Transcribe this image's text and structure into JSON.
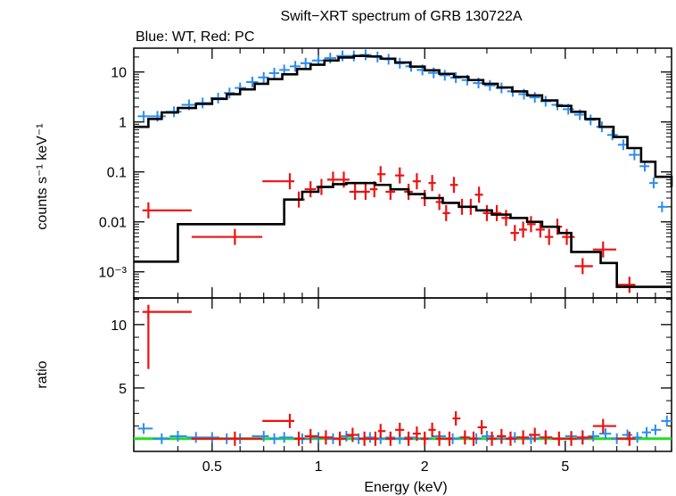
{
  "chart_data": {
    "type": "scatter",
    "title": "Swift−XRT spectrum of GRB 130722A",
    "subtitle": "Blue: WT, Red: PC",
    "xlabel": "Energy (keV)",
    "xscale": "log",
    "xlim": [
      0.3,
      10
    ],
    "x_ticks": [
      "0.5",
      "1",
      "2",
      "5"
    ],
    "x_tick_values": [
      0.5,
      1,
      2,
      5
    ],
    "colors": {
      "wt": "#2a8cf0",
      "pc": "#ee1111",
      "model": "#000000",
      "unity": "#22dd22"
    },
    "panels": [
      {
        "name": "spectrum",
        "ylabel": "counts s⁻¹ keV⁻¹",
        "yscale": "log",
        "ylim": [
          0.0003,
          30
        ],
        "y_ticks": [
          "10",
          "1",
          "0.1",
          "0.01",
          "10⁻³"
        ],
        "y_tick_values": [
          10,
          1,
          0.1,
          0.01,
          0.001
        ],
        "series": [
          {
            "key": "wt",
            "points": [
              [
                0.32,
                1.3
              ],
              [
                0.35,
                1.3
              ],
              [
                0.39,
                1.6
              ],
              [
                0.43,
                2.2
              ],
              [
                0.47,
                2.4
              ],
              [
                0.52,
                3.0
              ],
              [
                0.56,
                3.8
              ],
              [
                0.6,
                4.8
              ],
              [
                0.65,
                6.3
              ],
              [
                0.7,
                7.8
              ],
              [
                0.75,
                9.5
              ],
              [
                0.8,
                11
              ],
              [
                0.86,
                13
              ],
              [
                0.92,
                15
              ],
              [
                1.0,
                17
              ],
              [
                1.08,
                19
              ],
              [
                1.17,
                21
              ],
              [
                1.26,
                21
              ],
              [
                1.36,
                22
              ],
              [
                1.47,
                20
              ],
              [
                1.58,
                18
              ],
              [
                1.7,
                15
              ],
              [
                1.83,
                13
              ],
              [
                1.97,
                11
              ],
              [
                2.12,
                9.6
              ],
              [
                2.28,
                8.6
              ],
              [
                2.45,
                7.7
              ],
              [
                2.64,
                6.9
              ],
              [
                2.84,
                6.0
              ],
              [
                3.06,
                5.4
              ],
              [
                3.3,
                4.8
              ],
              [
                3.55,
                4.1
              ],
              [
                3.82,
                3.6
              ],
              [
                4.1,
                3.1
              ],
              [
                4.4,
                2.6
              ],
              [
                4.75,
                2.2
              ],
              [
                5.1,
                1.8
              ],
              [
                5.5,
                1.4
              ],
              [
                5.9,
                1.1
              ],
              [
                6.35,
                0.8
              ],
              [
                6.8,
                0.55
              ],
              [
                7.3,
                0.35
              ],
              [
                7.85,
                0.22
              ],
              [
                8.4,
                0.13
              ],
              [
                8.9,
                0.06
              ],
              [
                9.4,
                0.02
              ]
            ]
          },
          {
            "key": "pc",
            "points": [
              [
                0.33,
                0.017
              ],
              [
                0.58,
                0.005
              ],
              [
                0.83,
                0.065
              ],
              [
                0.88,
                0.028
              ],
              [
                0.95,
                0.045
              ],
              [
                1.02,
                0.05
              ],
              [
                1.1,
                0.07
              ],
              [
                1.18,
                0.07
              ],
              [
                1.27,
                0.04
              ],
              [
                1.36,
                0.04
              ],
              [
                1.44,
                0.045
              ],
              [
                1.5,
                0.09
              ],
              [
                1.6,
                0.04
              ],
              [
                1.7,
                0.085
              ],
              [
                1.8,
                0.04
              ],
              [
                1.9,
                0.065
              ],
              [
                2.0,
                0.03
              ],
              [
                2.1,
                0.06
              ],
              [
                2.2,
                0.025
              ],
              [
                2.3,
                0.015
              ],
              [
                2.42,
                0.055
              ],
              [
                2.55,
                0.02
              ],
              [
                2.7,
                0.02
              ],
              [
                2.85,
                0.035
              ],
              [
                3.0,
                0.015
              ],
              [
                3.2,
                0.015
              ],
              [
                3.4,
                0.012
              ],
              [
                3.6,
                0.006
              ],
              [
                3.8,
                0.007
              ],
              [
                4.0,
                0.009
              ],
              [
                4.25,
                0.007
              ],
              [
                4.5,
                0.005
              ],
              [
                4.75,
                0.008
              ],
              [
                5.05,
                0.005
              ],
              [
                5.6,
                0.0013
              ],
              [
                6.4,
                0.0028
              ],
              [
                7.6,
                0.00055
              ]
            ]
          },
          {
            "key": "model",
            "step": true,
            "points": [
              [
                0.3,
                0.8
              ],
              [
                0.33,
                1.15
              ],
              [
                0.36,
                1.55
              ],
              [
                0.4,
                1.9
              ],
              [
                0.45,
                2.3
              ],
              [
                0.5,
                2.9
              ],
              [
                0.55,
                3.6
              ],
              [
                0.6,
                4.5
              ],
              [
                0.66,
                5.8
              ],
              [
                0.72,
                7.2
              ],
              [
                0.79,
                9.0
              ],
              [
                0.87,
                11.5
              ],
              [
                0.95,
                14
              ],
              [
                1.04,
                17
              ],
              [
                1.14,
                19.5
              ],
              [
                1.26,
                21
              ],
              [
                1.38,
                20.5
              ],
              [
                1.5,
                18.5
              ],
              [
                1.65,
                15.5
              ],
              [
                1.82,
                12.8
              ],
              [
                2.0,
                10.8
              ],
              [
                2.2,
                9.2
              ],
              [
                2.42,
                8.0
              ],
              [
                2.66,
                6.9
              ],
              [
                2.93,
                5.8
              ],
              [
                3.22,
                4.9
              ],
              [
                3.54,
                4.1
              ],
              [
                3.9,
                3.4
              ],
              [
                4.3,
                2.7
              ],
              [
                4.75,
                2.1
              ],
              [
                5.2,
                1.6
              ],
              [
                5.7,
                1.15
              ],
              [
                6.25,
                0.8
              ],
              [
                6.85,
                0.5
              ],
              [
                7.5,
                0.3
              ],
              [
                8.2,
                0.16
              ],
              [
                9.0,
                0.08
              ],
              [
                10.0,
                0.05
              ]
            ]
          },
          {
            "key": "model",
            "step": true,
            "points": [
              [
                0.3,
                0.0016
              ],
              [
                0.4,
                0.009
              ],
              [
                0.8,
                0.028
              ],
              [
                0.9,
                0.04
              ],
              [
                1.0,
                0.05
              ],
              [
                1.1,
                0.057
              ],
              [
                1.2,
                0.06
              ],
              [
                1.3,
                0.06
              ],
              [
                1.45,
                0.055
              ],
              [
                1.6,
                0.045
              ],
              [
                1.8,
                0.036
              ],
              [
                2.0,
                0.03
              ],
              [
                2.25,
                0.024
              ],
              [
                2.5,
                0.02
              ],
              [
                2.8,
                0.017
              ],
              [
                3.1,
                0.014
              ],
              [
                3.5,
                0.012
              ],
              [
                3.9,
                0.01
              ],
              [
                4.3,
                0.008
              ],
              [
                4.8,
                0.006
              ],
              [
                5.2,
                0.0025
              ],
              [
                6.3,
                0.0015
              ],
              [
                7.0,
                0.0005
              ],
              [
                8.5,
                0.0005
              ]
            ]
          }
        ]
      },
      {
        "name": "ratio",
        "ylabel": "ratio",
        "yscale": "linear",
        "ylim": [
          0,
          12.1
        ],
        "y_ticks": [
          "10",
          "5"
        ],
        "y_tick_values": [
          10,
          5
        ],
        "series": [
          {
            "key": "unity",
            "line_y": 1
          },
          {
            "key": "wt",
            "points": [
              [
                0.32,
                1.8
              ],
              [
                0.36,
                1.0
              ],
              [
                0.4,
                1.2
              ],
              [
                0.45,
                1.1
              ],
              [
                0.5,
                1.1
              ],
              [
                0.55,
                1.0
              ],
              [
                0.6,
                1.0
              ],
              [
                0.7,
                1.2
              ],
              [
                0.75,
                1.0
              ],
              [
                0.8,
                1.1
              ],
              [
                0.9,
                1.0
              ],
              [
                1.0,
                1.1
              ],
              [
                1.1,
                1.0
              ],
              [
                1.2,
                1.2
              ],
              [
                1.3,
                1.0
              ],
              [
                1.4,
                1.1
              ],
              [
                1.5,
                1.0
              ],
              [
                1.6,
                1.1
              ],
              [
                1.7,
                1.0
              ],
              [
                1.8,
                1.1
              ],
              [
                2.0,
                1.0
              ],
              [
                2.2,
                1.2
              ],
              [
                2.4,
                1.0
              ],
              [
                2.6,
                1.1
              ],
              [
                2.8,
                1.0
              ],
              [
                3.0,
                1.2
              ],
              [
                3.3,
                1.0
              ],
              [
                3.6,
                1.1
              ],
              [
                4.0,
                1.0
              ],
              [
                4.4,
                1.1
              ],
              [
                4.8,
                1.0
              ],
              [
                5.2,
                1.2
              ],
              [
                5.6,
                1.0
              ],
              [
                6.0,
                1.2
              ],
              [
                6.5,
                1.4
              ],
              [
                7.0,
                1.0
              ],
              [
                7.5,
                1.3
              ],
              [
                8.0,
                1.1
              ],
              [
                8.5,
                1.5
              ],
              [
                9.0,
                1.7
              ],
              [
                9.7,
                2.4
              ]
            ]
          },
          {
            "key": "pc",
            "points": [
              [
                0.33,
                11.0
              ],
              [
                0.58,
                1.0
              ],
              [
                0.83,
                2.4
              ],
              [
                0.88,
                1.0
              ],
              [
                0.95,
                1.2
              ],
              [
                1.05,
                1.1
              ],
              [
                1.15,
                1.0
              ],
              [
                1.25,
                1.3
              ],
              [
                1.35,
                1.0
              ],
              [
                1.45,
                1.0
              ],
              [
                1.5,
                1.6
              ],
              [
                1.6,
                1.0
              ],
              [
                1.7,
                1.7
              ],
              [
                1.8,
                1.0
              ],
              [
                1.9,
                1.4
              ],
              [
                2.0,
                1.0
              ],
              [
                2.1,
                1.7
              ],
              [
                2.2,
                1.0
              ],
              [
                2.35,
                1.0
              ],
              [
                2.45,
                2.6
              ],
              [
                2.6,
                1.1
              ],
              [
                2.75,
                1.0
              ],
              [
                2.9,
                1.9
              ],
              [
                3.1,
                1.0
              ],
              [
                3.3,
                1.2
              ],
              [
                3.5,
                1.0
              ],
              [
                3.8,
                1.1
              ],
              [
                4.1,
                1.3
              ],
              [
                4.4,
                1.1
              ],
              [
                4.8,
                1.0
              ],
              [
                5.2,
                1.0
              ],
              [
                5.6,
                1.1
              ],
              [
                6.4,
                2.0
              ],
              [
                7.6,
                1.0
              ]
            ]
          }
        ]
      }
    ]
  }
}
